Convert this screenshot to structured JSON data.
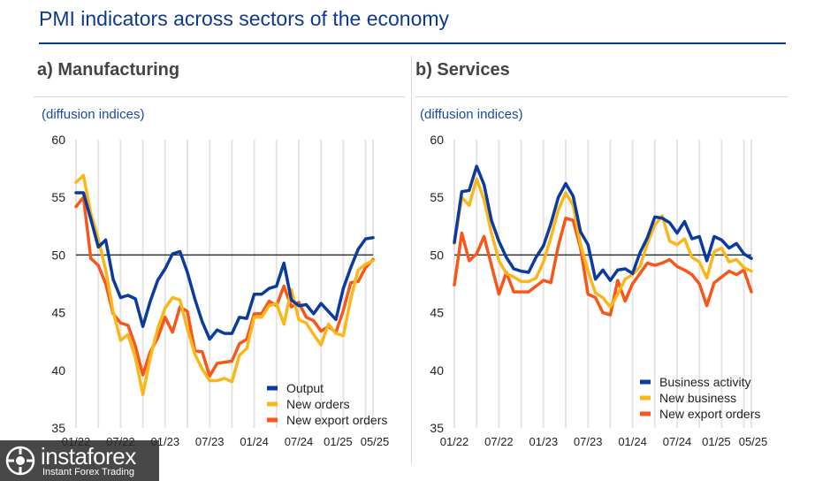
{
  "header": {
    "title": "PMI indicators across sectors of the economy"
  },
  "panels": {
    "left_title": "a) Manufacturing",
    "right_title": "b) Services",
    "left_subtitle": "(diffusion indices)",
    "right_subtitle": "(diffusion indices)"
  },
  "watermark": {
    "brand": "instaforex",
    "tagline": "Instant Forex Trading"
  },
  "colors": {
    "blue": "#0b3b9c",
    "yellow": "#fbb71a",
    "orange": "#f9561b",
    "reference_line": "#333333",
    "grid": "#e4e4e4"
  },
  "chart_data": [
    {
      "type": "line",
      "title": "a) Manufacturing",
      "ylabel": "(diffusion indices)",
      "ylim": [
        35,
        60
      ],
      "yticks": [
        35,
        40,
        45,
        50,
        55,
        60
      ],
      "xticks": [
        "01/22",
        "07/22",
        "01/23",
        "07/23",
        "01/24",
        "07/24",
        "01/25",
        "05/25"
      ],
      "reference_line": 50,
      "grid": "vertical",
      "legend": "bottom-right",
      "x": [
        "01/22",
        "02/22",
        "03/22",
        "04/22",
        "05/22",
        "06/22",
        "07/22",
        "08/22",
        "09/22",
        "10/22",
        "11/22",
        "12/22",
        "01/23",
        "02/23",
        "03/23",
        "04/23",
        "05/23",
        "06/23",
        "07/23",
        "08/23",
        "09/23",
        "10/23",
        "11/23",
        "12/23",
        "01/24",
        "02/24",
        "03/24",
        "04/24",
        "05/24",
        "06/24",
        "07/24",
        "08/24",
        "09/24",
        "10/24",
        "11/24",
        "12/24",
        "01/25",
        "02/25",
        "03/25",
        "04/25",
        "05/25"
      ],
      "series": [
        {
          "name": "Output",
          "color": "#0b3b9c",
          "values": [
            55.4,
            55.4,
            53.1,
            50.7,
            51.3,
            47.9,
            46.3,
            46.5,
            46.2,
            43.8,
            46.0,
            47.8,
            48.8,
            50.1,
            50.3,
            48.5,
            46.2,
            44.2,
            42.7,
            43.5,
            43.2,
            43.2,
            44.6,
            44.5,
            46.6,
            46.6,
            47.1,
            47.3,
            49.3,
            46.1,
            45.6,
            45.7,
            44.9,
            45.8,
            45.1,
            44.4,
            47.1,
            48.9,
            50.5,
            51.4,
            51.5
          ]
        },
        {
          "name": "New orders",
          "color": "#fbb71a",
          "values": [
            56.3,
            56.9,
            53.6,
            51.4,
            48.7,
            45.1,
            42.6,
            43.1,
            41.1,
            37.9,
            41.1,
            43.6,
            45.4,
            46.3,
            46.1,
            43.6,
            41.4,
            40.1,
            39.1,
            39.1,
            39.3,
            39.0,
            41.3,
            41.9,
            44.6,
            44.6,
            45.6,
            45.8,
            44.0,
            47.0,
            44.4,
            44.1,
            43.1,
            42.2,
            44.0,
            43.2,
            43.0,
            46.2,
            48.7,
            49.2,
            49.5
          ]
        },
        {
          "name": "New export orders",
          "color": "#f9561b",
          "values": [
            54.2,
            55.0,
            49.7,
            49.1,
            47.5,
            44.9,
            44.1,
            43.9,
            42.1,
            39.6,
            41.6,
            42.8,
            44.6,
            43.3,
            45.5,
            45.1,
            41.7,
            41.6,
            39.5,
            40.6,
            40.7,
            40.8,
            42.3,
            42.7,
            44.9,
            44.9,
            46.0,
            45.6,
            47.3,
            45.5,
            45.9,
            44.6,
            44.3,
            43.4,
            43.8,
            43.3,
            45.2,
            47.6,
            47.7,
            48.9,
            49.6
          ]
        }
      ]
    },
    {
      "type": "line",
      "title": "b) Services",
      "ylabel": "(diffusion indices)",
      "ylim": [
        35,
        60
      ],
      "yticks": [
        35,
        40,
        45,
        50,
        55,
        60
      ],
      "xticks": [
        "01/22",
        "07/22",
        "01/23",
        "07/23",
        "01/24",
        "07/24",
        "01/25",
        "05/25"
      ],
      "reference_line": 50,
      "grid": "vertical",
      "legend": "bottom-right",
      "x": [
        "01/22",
        "02/22",
        "03/22",
        "04/22",
        "05/22",
        "06/22",
        "07/22",
        "08/22",
        "09/22",
        "10/22",
        "11/22",
        "12/22",
        "01/23",
        "02/23",
        "03/23",
        "04/23",
        "05/23",
        "06/23",
        "07/23",
        "08/23",
        "09/23",
        "10/23",
        "11/23",
        "12/23",
        "01/24",
        "02/24",
        "03/24",
        "04/24",
        "05/24",
        "06/24",
        "07/24",
        "08/24",
        "09/24",
        "10/24",
        "11/24",
        "12/24",
        "01/25",
        "02/25",
        "03/25",
        "04/25",
        "05/25"
      ],
      "series": [
        {
          "name": "Business activity",
          "color": "#0b3b9c",
          "values": [
            51.1,
            55.5,
            55.6,
            57.7,
            56.1,
            53.0,
            51.2,
            49.8,
            48.8,
            48.6,
            48.5,
            49.8,
            50.8,
            52.7,
            55.0,
            56.2,
            55.1,
            52.0,
            50.9,
            47.9,
            48.7,
            47.8,
            48.7,
            48.8,
            48.4,
            50.2,
            51.5,
            53.3,
            53.2,
            52.8,
            51.9,
            52.9,
            51.4,
            51.6,
            49.5,
            51.6,
            51.3,
            50.6,
            51.0,
            50.1,
            49.7
          ]
        },
        {
          "name": "New business",
          "color": "#fbb71a",
          "values": [
            51.0,
            55.0,
            54.3,
            56.6,
            54.8,
            51.9,
            49.5,
            48.4,
            48.1,
            47.7,
            47.7,
            48.0,
            49.4,
            51.5,
            53.9,
            55.4,
            54.3,
            50.9,
            48.6,
            46.7,
            46.3,
            45.5,
            46.6,
            47.9,
            48.3,
            49.0,
            51.0,
            52.6,
            53.4,
            51.2,
            50.9,
            51.4,
            49.8,
            49.4,
            48.0,
            50.3,
            50.6,
            49.4,
            49.6,
            48.9,
            48.6
          ]
        },
        {
          "name": "New export orders",
          "color": "#f9561b",
          "values": [
            47.4,
            51.9,
            49.5,
            50.1,
            51.6,
            49.1,
            46.6,
            48.5,
            46.8,
            46.8,
            46.8,
            47.3,
            47.8,
            47.6,
            50.8,
            53.2,
            53.0,
            50.6,
            46.6,
            46.3,
            45.0,
            44.8,
            47.8,
            46.0,
            47.5,
            48.4,
            49.3,
            49.1,
            49.3,
            49.6,
            49.0,
            48.7,
            48.3,
            47.5,
            45.6,
            47.6,
            48.1,
            48.6,
            48.3,
            48.7,
            46.8
          ]
        }
      ]
    }
  ]
}
